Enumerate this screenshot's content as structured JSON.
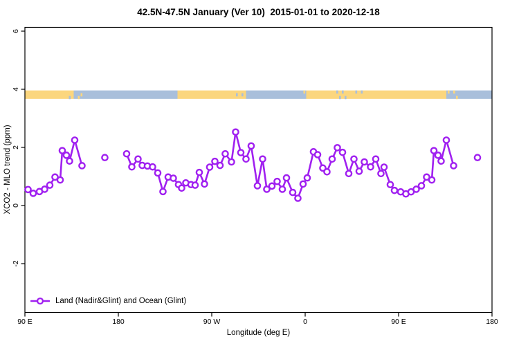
{
  "chart_data": {
    "type": "line",
    "title": "42.5N-47.5N January (Ver 10)  2015-01-01 to 2020-12-18",
    "xlabel": "Longitude (deg E)",
    "ylabel": "XCO2 - MLO trend (ppm)",
    "xlim": [
      90,
      540
    ],
    "ylim": [
      -3.7,
      6.15
    ],
    "grid": false,
    "x_ticks": [
      {
        "lon": 90,
        "label": "90 E"
      },
      {
        "lon": 180,
        "label": "180"
      },
      {
        "lon": 270,
        "label": "90 W"
      },
      {
        "lon": 360,
        "label": "0"
      },
      {
        "lon": 450,
        "label": "90 E"
      },
      {
        "lon": 540,
        "label": "180"
      }
    ],
    "y_ticks": [
      {
        "value": 6,
        "label": "6"
      },
      {
        "value": 4,
        "label": "4"
      },
      {
        "value": 2,
        "label": "2"
      },
      {
        "value": 0,
        "label": "0"
      },
      {
        "value": -2,
        "label": "-2"
      }
    ],
    "legend": {
      "position": "bottom-left",
      "entries": [
        {
          "label": "Land (Nadir&Glint) and Ocean (Glint)",
          "color": "#A020F0",
          "marker": "open-circle"
        }
      ]
    },
    "surface_band": {
      "description": "land-ocean surface strip",
      "value_range": [
        3.67,
        3.96
      ],
      "land_color": "#FBD67E",
      "ocean_color": "#A9BFDB",
      "segments": [
        {
          "from": 90,
          "to": 131,
          "type": "land"
        },
        {
          "from": 131,
          "to": 137,
          "type": "land_speckled"
        },
        {
          "from": 137,
          "to": 151,
          "type": "ocean_speckled"
        },
        {
          "from": 151,
          "to": 237,
          "type": "ocean"
        },
        {
          "from": 237,
          "to": 292,
          "type": "land"
        },
        {
          "from": 292,
          "to": 303,
          "type": "land_speckled"
        },
        {
          "from": 303,
          "to": 357,
          "type": "ocean"
        },
        {
          "from": 357,
          "to": 361,
          "type": "ocean_speckled"
        },
        {
          "from": 361,
          "to": 386,
          "type": "land"
        },
        {
          "from": 386,
          "to": 403,
          "type": "land_speckled"
        },
        {
          "from": 403,
          "to": 407,
          "type": "land"
        },
        {
          "from": 407,
          "to": 416,
          "type": "land_speckled"
        },
        {
          "from": 416,
          "to": 496,
          "type": "land"
        },
        {
          "from": 496,
          "to": 508,
          "type": "ocean_speckled"
        },
        {
          "from": 508,
          "to": 540,
          "type": "ocean"
        }
      ]
    },
    "series": [
      {
        "name": "Land (Nadir&Glint) and Ocean (Glint)",
        "color": "#A020F0",
        "marker": "open-circle",
        "segments": [
          [
            [
              93,
              0.55
            ],
            [
              98,
              0.42
            ],
            [
              104,
              0.48
            ],
            [
              109,
              0.56
            ],
            [
              114,
              0.7
            ],
            [
              119,
              0.98
            ],
            [
              124,
              0.88
            ],
            [
              126,
              1.89
            ],
            [
              130,
              1.73
            ],
            [
              133,
              1.53
            ],
            [
              138,
              2.25
            ],
            [
              145,
              1.37
            ]
          ],
          [
            [
              167,
              1.65
            ]
          ],
          [
            [
              188,
              1.78
            ],
            [
              193,
              1.33
            ],
            [
              199,
              1.6
            ],
            [
              203,
              1.38
            ],
            [
              208,
              1.36
            ],
            [
              213,
              1.33
            ],
            [
              218,
              1.12
            ],
            [
              223,
              0.48
            ],
            [
              228,
              0.98
            ],
            [
              233,
              0.94
            ],
            [
              238,
              0.72
            ],
            [
              241,
              0.6
            ],
            [
              245,
              0.78
            ],
            [
              250,
              0.72
            ],
            [
              254,
              0.7
            ],
            [
              258,
              1.14
            ],
            [
              263,
              0.74
            ],
            [
              268,
              1.32
            ],
            [
              273,
              1.52
            ],
            [
              278,
              1.38
            ],
            [
              283,
              1.78
            ],
            [
              289,
              1.5
            ],
            [
              293,
              2.53
            ],
            [
              298,
              1.82
            ],
            [
              303,
              1.6
            ],
            [
              308,
              2.05
            ],
            [
              314,
              0.68
            ],
            [
              319,
              1.6
            ],
            [
              323,
              0.56
            ],
            [
              328,
              0.67
            ],
            [
              333,
              0.83
            ],
            [
              338,
              0.56
            ],
            [
              342,
              0.95
            ],
            [
              348,
              0.45
            ],
            [
              353,
              0.25
            ],
            [
              358,
              0.74
            ],
            [
              362,
              0.95
            ],
            [
              368,
              1.85
            ],
            [
              372,
              1.75
            ],
            [
              377,
              1.29
            ],
            [
              381,
              1.16
            ],
            [
              386,
              1.6
            ],
            [
              391,
              1.99
            ],
            [
              396,
              1.83
            ],
            [
              402,
              1.1
            ],
            [
              407,
              1.6
            ],
            [
              412,
              1.18
            ],
            [
              417,
              1.5
            ],
            [
              423,
              1.33
            ],
            [
              428,
              1.6
            ],
            [
              433,
              1.1
            ],
            [
              436,
              1.32
            ],
            [
              442,
              0.72
            ],
            [
              446,
              0.52
            ],
            [
              452,
              0.47
            ],
            [
              457,
              0.4
            ],
            [
              462,
              0.47
            ],
            [
              467,
              0.56
            ],
            [
              472,
              0.68
            ],
            [
              477,
              0.98
            ],
            [
              482,
              0.88
            ],
            [
              484,
              1.89
            ],
            [
              488,
              1.73
            ],
            [
              491,
              1.53
            ],
            [
              496,
              2.25
            ],
            [
              503,
              1.37
            ]
          ],
          [
            [
              526,
              1.65
            ]
          ]
        ]
      }
    ]
  }
}
